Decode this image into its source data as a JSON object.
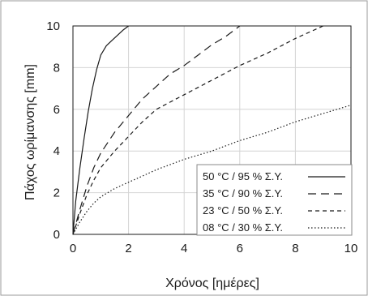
{
  "chart_data": {
    "type": "line",
    "title": "",
    "xlabel": "Χρόνος [ημέρες]",
    "ylabel": "Πάχος ωρίμανσης [mm]",
    "xlim": [
      0,
      10
    ],
    "ylim": [
      0,
      10
    ],
    "xticks": [
      "0",
      "2",
      "4",
      "6",
      "8",
      "10"
    ],
    "yticks": [
      "0",
      "2",
      "4",
      "6",
      "8",
      "10"
    ],
    "grid": true,
    "legend_position": "bottom-right",
    "series": [
      {
        "name": "50 °C / 95 % Σ.Υ.",
        "dash": "solid",
        "color": "#1a1a1a",
        "x": [
          0,
          0.1,
          0.25,
          0.4,
          0.55,
          0.7,
          0.85,
          1.0,
          1.2,
          1.4,
          1.6,
          1.8,
          2.0
        ],
        "y": [
          0,
          1.6,
          3.2,
          4.6,
          5.9,
          7.0,
          7.9,
          8.6,
          9.05,
          9.3,
          9.55,
          9.8,
          10.0
        ]
      },
      {
        "name": "35 °C / 90 % Σ.Υ.",
        "dash": "long-dash",
        "color": "#1a1a1a",
        "x": [
          0,
          0.25,
          0.5,
          0.75,
          1.0,
          1.5,
          2.0,
          2.5,
          3.0,
          3.5,
          4.0,
          4.5,
          5.0,
          5.5,
          6.0
        ],
        "y": [
          0,
          1.2,
          2.3,
          3.2,
          3.9,
          4.9,
          5.7,
          6.5,
          7.1,
          7.7,
          8.1,
          8.6,
          9.1,
          9.5,
          10.0
        ]
      },
      {
        "name": "23 °C / 50 % Σ.Υ.",
        "dash": "short-dash",
        "color": "#1a1a1a",
        "x": [
          0,
          0.25,
          0.5,
          0.75,
          1.0,
          1.5,
          2.0,
          2.5,
          3.0,
          4.0,
          5.0,
          6.0,
          7.0,
          8.0,
          9.0
        ],
        "y": [
          0,
          1.0,
          1.9,
          2.6,
          3.2,
          4.0,
          4.7,
          5.4,
          6.0,
          6.7,
          7.4,
          8.1,
          8.7,
          9.4,
          10.0
        ]
      },
      {
        "name": "08 °C / 30 % Σ.Υ.",
        "dash": "dotted",
        "color": "#1a1a1a",
        "x": [
          0,
          0.25,
          0.5,
          0.75,
          1.0,
          1.5,
          2.0,
          3.0,
          4.0,
          5.0,
          6.0,
          7.0,
          8.0,
          9.0,
          10.0
        ],
        "y": [
          0,
          0.6,
          1.1,
          1.5,
          1.8,
          2.2,
          2.5,
          3.1,
          3.6,
          4.0,
          4.5,
          4.9,
          5.4,
          5.8,
          6.2
        ]
      }
    ]
  }
}
